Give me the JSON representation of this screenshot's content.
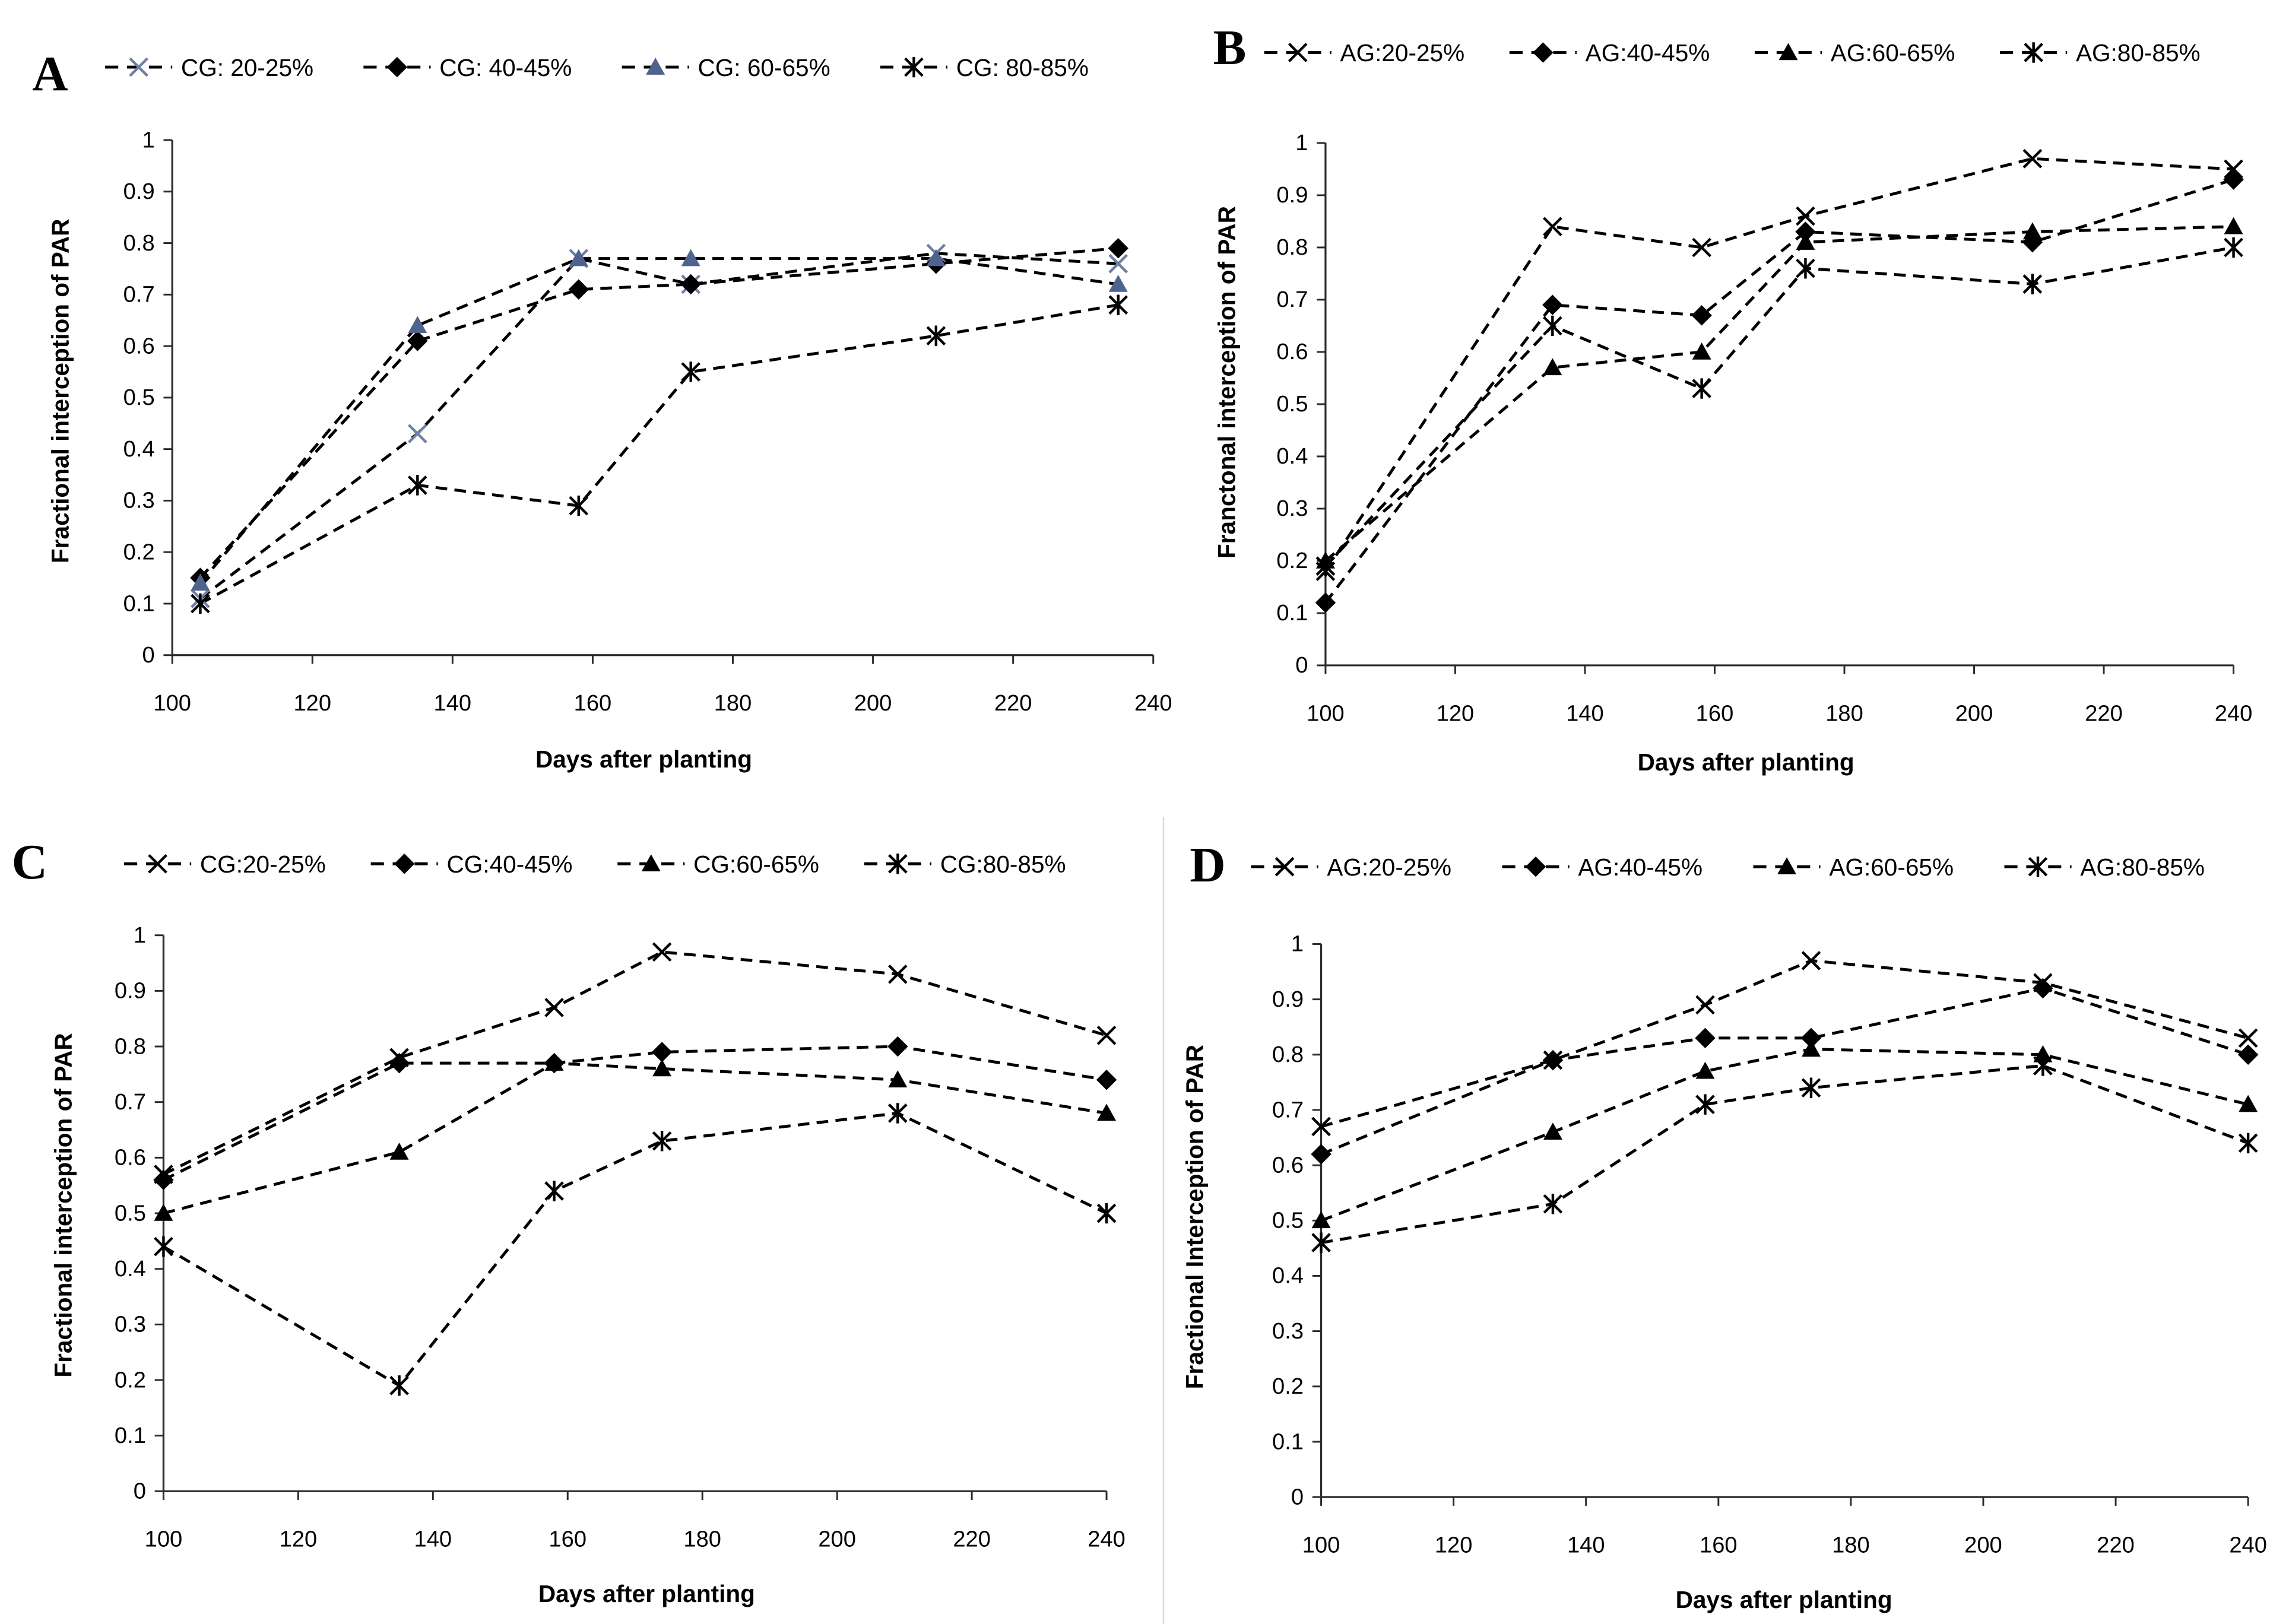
{
  "colors": {
    "background": "#ffffff",
    "axis": "#2b2b2b",
    "line": "#000000",
    "divider": "#d9d9d9",
    "text": "#000000"
  },
  "chart_data": [
    {
      "panel": "A",
      "type": "line",
      "xlabel": "Days after planting",
      "ylabel": "Fractional interception of PAR",
      "xlim": [
        100,
        240
      ],
      "ylim": [
        0,
        1
      ],
      "xticks": [
        100,
        120,
        140,
        160,
        180,
        200,
        220,
        240
      ],
      "yticks": [
        "0",
        "0.1",
        "0.2",
        "0.3",
        "0.4",
        "0.5",
        "0.6",
        "0.7",
        "0.8",
        "0.9",
        "1"
      ],
      "x": [
        104,
        135,
        158,
        174,
        209,
        235
      ],
      "series": [
        {
          "name": "CG: 20-25%",
          "marker": "x",
          "color": "#6f80a6",
          "values": [
            0.11,
            0.43,
            0.77,
            0.72,
            0.78,
            0.76
          ]
        },
        {
          "name": "CG: 40-45%",
          "marker": "diamond",
          "color": "#000000",
          "values": [
            0.15,
            0.61,
            0.71,
            0.72,
            0.76,
            0.79
          ]
        },
        {
          "name": "CG: 60-65%",
          "marker": "triangle",
          "color": "#4f6390",
          "values": [
            0.14,
            0.64,
            0.77,
            0.77,
            0.77,
            0.72
          ]
        },
        {
          "name": "CG: 80-85%",
          "marker": "asterisk",
          "color": "#000000",
          "values": [
            0.1,
            0.33,
            0.29,
            0.55,
            0.62,
            0.68
          ]
        }
      ]
    },
    {
      "panel": "B",
      "type": "line",
      "xlabel": "Days after planting",
      "ylabel": "Franctonal interception of PAR",
      "xlim": [
        100,
        240
      ],
      "ylim": [
        0,
        1
      ],
      "xticks": [
        100,
        120,
        140,
        160,
        180,
        200,
        220,
        240
      ],
      "yticks": [
        "0",
        "0.1",
        "0.2",
        "0.3",
        "0.4",
        "0.5",
        "0.6",
        "0.7",
        "0.8",
        "0.9",
        "1"
      ],
      "x": [
        100,
        135,
        158,
        174,
        209,
        240
      ],
      "series": [
        {
          "name": "AG:20-25%",
          "marker": "x",
          "color": "#000000",
          "values": [
            0.18,
            0.84,
            0.8,
            0.86,
            0.97,
            0.95
          ]
        },
        {
          "name": "AG:40-45%",
          "marker": "diamond",
          "color": "#000000",
          "values": [
            0.12,
            0.69,
            0.67,
            0.83,
            0.81,
            0.93
          ]
        },
        {
          "name": "AG:60-65%",
          "marker": "triangle",
          "color": "#000000",
          "values": [
            0.2,
            0.57,
            0.6,
            0.81,
            0.83,
            0.84
          ]
        },
        {
          "name": "AG:80-85%",
          "marker": "asterisk",
          "color": "#000000",
          "values": [
            0.19,
            0.65,
            0.53,
            0.76,
            0.73,
            0.8
          ]
        }
      ]
    },
    {
      "panel": "C",
      "type": "line",
      "xlabel": "Days after planting",
      "ylabel": "Fractional interception of PAR",
      "xlim": [
        100,
        240
      ],
      "ylim": [
        0,
        1
      ],
      "xticks": [
        100,
        120,
        140,
        160,
        180,
        200,
        220,
        240
      ],
      "yticks": [
        "0",
        "0.1",
        "0.2",
        "0.3",
        "0.4",
        "0.5",
        "0.6",
        "0.7",
        "0.8",
        "0.9",
        "1"
      ],
      "x": [
        100,
        135,
        158,
        174,
        209,
        240
      ],
      "series": [
        {
          "name": "CG:20-25%",
          "marker": "x",
          "color": "#000000",
          "values": [
            0.57,
            0.78,
            0.87,
            0.97,
            0.93,
            0.82
          ]
        },
        {
          "name": "CG:40-45%",
          "marker": "diamond",
          "color": "#000000",
          "values": [
            0.56,
            0.77,
            0.77,
            0.79,
            0.8,
            0.74
          ]
        },
        {
          "name": "CG:60-65%",
          "marker": "triangle",
          "color": "#000000",
          "values": [
            0.5,
            0.61,
            0.77,
            0.76,
            0.74,
            0.68
          ]
        },
        {
          "name": "CG:80-85%",
          "marker": "asterisk",
          "color": "#000000",
          "values": [
            0.44,
            0.19,
            0.54,
            0.63,
            0.68,
            0.5
          ]
        }
      ]
    },
    {
      "panel": "D",
      "type": "line",
      "xlabel": "Days after planting",
      "ylabel": "Fractional Interception of PAR",
      "xlim": [
        100,
        240
      ],
      "ylim": [
        0,
        1
      ],
      "xticks": [
        100,
        120,
        140,
        160,
        180,
        200,
        220,
        240
      ],
      "yticks": [
        "0",
        "0.1",
        "0.2",
        "0.3",
        "0.4",
        "0.5",
        "0.6",
        "0.7",
        "0.8",
        "0.9",
        "1"
      ],
      "x": [
        100,
        135,
        158,
        174,
        209,
        240
      ],
      "series": [
        {
          "name": "AG:20-25%",
          "marker": "x",
          "color": "#000000",
          "values": [
            0.67,
            0.79,
            0.89,
            0.97,
            0.93,
            0.83
          ]
        },
        {
          "name": "AG:40-45%",
          "marker": "diamond",
          "color": "#000000",
          "values": [
            0.62,
            0.79,
            0.83,
            0.83,
            0.92,
            0.8
          ]
        },
        {
          "name": "AG:60-65%",
          "marker": "triangle",
          "color": "#000000",
          "values": [
            0.5,
            0.66,
            0.77,
            0.81,
            0.8,
            0.71
          ]
        },
        {
          "name": "AG:80-85%",
          "marker": "asterisk",
          "color": "#000000",
          "values": [
            0.46,
            0.53,
            0.71,
            0.74,
            0.78,
            0.64
          ]
        }
      ]
    }
  ]
}
